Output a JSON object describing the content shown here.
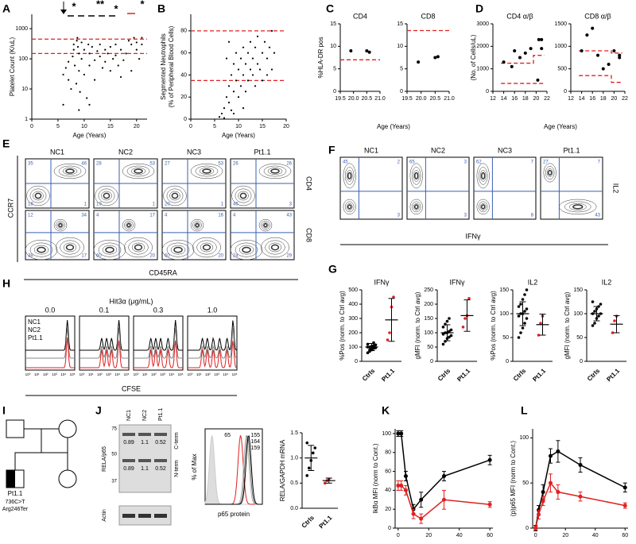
{
  "panel_labels": [
    "A",
    "B",
    "C",
    "D",
    "E",
    "F",
    "G",
    "H",
    "I",
    "J",
    "K",
    "L"
  ],
  "shared_labels": {
    "c_x": "Age (Years)",
    "d_x": "Age (Years)"
  },
  "chart_data": [
    {
      "type": "scatter",
      "y_label": "Platelet Count (K/uL)",
      "x_label": "Age (Years)",
      "log": true,
      "color": "#000",
      "xlim": [
        0,
        22
      ],
      "xticks": [
        0,
        5,
        10,
        15,
        20
      ],
      "ylim": [
        1,
        3000
      ],
      "yticks": [
        1,
        10,
        100,
        1000
      ],
      "x": [
        6,
        6.5,
        7,
        7,
        7.5,
        7.8,
        8,
        8,
        8.2,
        8.5,
        8.6,
        8.7,
        8.8,
        9,
        9,
        9.2,
        9.5,
        9.5,
        10,
        10,
        10.5,
        10.8,
        11,
        11,
        11.5,
        12,
        12,
        12.5,
        13,
        13,
        13.5,
        14,
        14,
        14.5,
        15,
        15,
        15.5,
        16,
        16,
        16.5,
        17,
        17,
        17.5,
        18,
        18.5,
        19,
        19,
        19.5,
        20,
        20,
        20.5,
        21,
        21,
        6,
        9,
        11
      ],
      "values": [
        30,
        50,
        20,
        80,
        10,
        120,
        200,
        300,
        60,
        15,
        400,
        500,
        250,
        150,
        40,
        8,
        350,
        100,
        200,
        30,
        5,
        300,
        150,
        60,
        250,
        90,
        20,
        180,
        300,
        120,
        50,
        200,
        80,
        150,
        250,
        40,
        100,
        130,
        300,
        60,
        200,
        25,
        90,
        150,
        400,
        300,
        40,
        500,
        350,
        200,
        100,
        300,
        500,
        3,
        2,
        3
      ],
      "reference_lines": [
        {
          "color": "#e02020",
          "x": [
            0,
            22
          ],
          "values": [
            150,
            150
          ]
        },
        {
          "color": "#e02020",
          "x": [
            0,
            22
          ],
          "values": [
            450,
            450
          ]
        }
      ],
      "annotations": [
        {
          "text": "*",
          "color": "#000"
        },
        {
          "text": "**",
          "color": "#22aa44"
        },
        {
          "text": "*",
          "color": "#e02020"
        },
        {
          "text": "*",
          "color": "#22aa44"
        }
      ]
    },
    {
      "type": "scatter",
      "y_label": [
        "Segmented Neutrophils",
        "(% of Peripheral Blood Cells)"
      ],
      "x_label": "Age (Years)",
      "color": "#000",
      "xlim": [
        0,
        20
      ],
      "xticks": [
        0,
        5,
        10,
        15,
        20
      ],
      "ylim": [
        0,
        95
      ],
      "yticks": [
        0,
        20,
        40,
        60,
        80
      ],
      "x": [
        6,
        6.5,
        7,
        7,
        7.5,
        8,
        8,
        8.5,
        8.5,
        9,
        9,
        9.5,
        9.5,
        10,
        10,
        10.5,
        10.5,
        11,
        11,
        11.5,
        11.5,
        12,
        12,
        12.5,
        12.5,
        13,
        13,
        13.5,
        13.5,
        14,
        14,
        14.5,
        15,
        15,
        15.5,
        16,
        16,
        16.5,
        17,
        17,
        17.5,
        8,
        7.5,
        11,
        9
      ],
      "values": [
        2,
        5,
        10,
        1,
        20,
        15,
        30,
        40,
        8,
        25,
        50,
        35,
        60,
        45,
        20,
        55,
        30,
        40,
        65,
        50,
        25,
        60,
        35,
        45,
        70,
        40,
        55,
        30,
        65,
        50,
        75,
        45,
        35,
        60,
        70,
        40,
        55,
        65,
        45,
        80,
        60,
        70,
        55,
        10,
        5
      ],
      "reference_lines": [
        {
          "color": "#e02020",
          "x": [
            0,
            20
          ],
          "values": [
            80,
            80
          ]
        },
        {
          "color": "#e02020",
          "x": [
            0,
            20
          ],
          "values": [
            35,
            35
          ]
        }
      ]
    },
    {
      "type": "scatter",
      "title": "CD4",
      "y_label": "%HLA-DR pos",
      "color": "#000",
      "xlim": [
        19.5,
        21
      ],
      "xticks": [
        19.5,
        {
          "value": 20,
          "label": "20.0"
        },
        20.5,
        {
          "value": 21,
          "label": "21.0"
        }
      ],
      "ylim": [
        0,
        15
      ],
      "yticks": [
        0,
        5,
        10,
        15
      ],
      "x": [
        19.9,
        20.5,
        20.6
      ],
      "values": [
        9,
        9,
        8.7
      ],
      "reference_lines": [
        {
          "color": "#e02020",
          "x": [
            19.5,
            21
          ],
          "values": [
            7,
            7
          ]
        }
      ]
    },
    {
      "type": "scatter",
      "title": "CD8",
      "color": "#000",
      "xlim": [
        19.5,
        21
      ],
      "xticks": [
        19.5,
        {
          "value": 20,
          "label": "20.0"
        },
        20.5,
        {
          "value": 21,
          "label": "21.0"
        }
      ],
      "ylim": [
        0,
        15
      ],
      "yticks": [
        0,
        5,
        10,
        15
      ],
      "x": [
        19.9,
        20.5,
        20.6
      ],
      "values": [
        6.5,
        7.5,
        7.7
      ],
      "reference_lines": [
        {
          "color": "#e02020",
          "x": [
            19.5,
            21
          ],
          "values": [
            13.5,
            13.5
          ]
        }
      ]
    },
    {
      "type": "scatter",
      "title": "CD4 α/β",
      "y_label": "(No. of Cells/uL)",
      "color": "#000",
      "xlim": [
        12,
        22
      ],
      "xticks": [
        12,
        14,
        16,
        18,
        20,
        22
      ],
      "ylim": [
        0,
        3000
      ],
      "yticks": [
        0,
        1000,
        2000,
        3000
      ],
      "x": [
        14,
        15.5,
        16,
        17,
        18,
        19,
        20.3,
        20.5,
        21,
        21
      ],
      "values": [
        1300,
        1100,
        1800,
        1500,
        1700,
        1900,
        500,
        2300,
        1900,
        2300
      ],
      "reference_lines": [
        {
          "color": "#e02020",
          "x": [
            13.5,
            19.5,
            19.5,
            21.5
          ],
          "values": [
            1250,
            1250,
            1600,
            1600
          ]
        },
        {
          "color": "#e02020",
          "x": [
            13.5,
            21.5
          ],
          "values": [
            350,
            350
          ]
        }
      ]
    },
    {
      "type": "scatter",
      "title": "CD8 α/β",
      "color": "#000",
      "xlim": [
        12,
        22
      ],
      "xticks": [
        12,
        14,
        16,
        18,
        20,
        22
      ],
      "ylim": [
        0,
        1500
      ],
      "yticks": [
        0,
        500,
        1000,
        1500
      ],
      "x": [
        14,
        15,
        16,
        17,
        18,
        19,
        20,
        21,
        21
      ],
      "values": [
        900,
        1250,
        1400,
        800,
        500,
        600,
        900,
        800,
        750
      ],
      "reference_lines": [
        {
          "color": "#e02020",
          "x": [
            13.5,
            19.5,
            19.5,
            21.5
          ],
          "values": [
            900,
            900,
            850,
            850
          ]
        },
        {
          "color": "#e02020",
          "x": [
            13.5,
            19.5,
            19.5,
            21.5
          ],
          "values": [
            350,
            350,
            200,
            200
          ]
        }
      ]
    },
    {
      "type": "dot",
      "title": "IFNγ",
      "y_label": "%Pos (norm. to Ctrl avg)",
      "categories": [
        "Ctrls",
        "Pt1.1"
      ],
      "colors": [
        "#000",
        "#e02020"
      ],
      "ylim": [
        0,
        500
      ],
      "yticks": [
        0,
        100,
        200,
        300,
        400,
        500
      ],
      "values": [
        [
          60,
          70,
          80,
          90,
          95,
          100,
          100,
          105,
          110,
          115,
          120,
          80,
          90,
          130
        ],
        [
          150,
          200,
          380,
          450
        ]
      ],
      "mean": [
        100,
        290
      ],
      "sd": [
        25,
        150
      ]
    },
    {
      "type": "dot",
      "title": "IFNγ",
      "y_label": "gMFI (norm. to Ctrl avg)",
      "categories": [
        "Ctrls",
        "Pt1.1"
      ],
      "colors": [
        "#000",
        "#e02020"
      ],
      "ylim": [
        0,
        250
      ],
      "yticks": [
        0,
        50,
        100,
        150,
        200,
        250
      ],
      "values": [
        [
          60,
          70,
          80,
          85,
          90,
          95,
          100,
          100,
          105,
          110,
          120,
          130,
          140,
          150
        ],
        [
          120,
          150,
          160,
          220
        ]
      ],
      "mean": [
        100,
        160
      ],
      "sd": [
        28,
        55
      ]
    },
    {
      "type": "dot",
      "title": "IL2",
      "y_label": "%Pos (norm. to Ctrl avg)",
      "categories": [
        "Ctrls",
        "Pt1.1"
      ],
      "colors": [
        "#000",
        "#e02020"
      ],
      "ylim": [
        0,
        150
      ],
      "yticks": [
        0,
        50,
        100,
        150
      ],
      "values": [
        [
          50,
          60,
          70,
          80,
          90,
          95,
          100,
          100,
          105,
          110,
          115,
          120,
          130,
          140,
          150
        ],
        [
          55,
          80,
          95
        ]
      ],
      "mean": [
        100,
        77
      ],
      "sd": [
        25,
        22
      ]
    },
    {
      "type": "dot",
      "title": "IL2",
      "y_label": "gMFI (norm. to Ctrl avg)",
      "categories": [
        "Ctrls",
        "Pt1.1"
      ],
      "colors": [
        "#000",
        "#e02020"
      ],
      "ylim": [
        0,
        150
      ],
      "yticks": [
        0,
        50,
        100,
        150
      ],
      "values": [
        [
          75,
          80,
          90,
          95,
          100,
          100,
          105,
          110,
          115,
          120,
          125
        ],
        [
          60,
          85,
          95
        ]
      ],
      "mean": [
        100,
        78
      ],
      "sd": [
        15,
        18
      ]
    },
    {
      "type": "dot",
      "y_label": "RELA/GAPDH mRNA",
      "categories": [
        "Ctrls",
        "Pt1.1"
      ],
      "colors": [
        "#000",
        "#e02020"
      ],
      "ylim": [
        0,
        1.5
      ],
      "yticks": [
        {
          "value": 0,
          "label": "0.0"
        },
        0.5,
        {
          "value": 1,
          "label": "1.0"
        },
        1.5
      ],
      "values": [
        [
          0.65,
          0.8,
          0.95,
          1.1,
          1.2,
          1.3
        ],
        [
          0.5,
          0.55,
          0.58
        ]
      ],
      "mean": [
        1,
        0.55
      ],
      "sd": [
        0.25,
        0.05
      ]
    },
    {
      "type": "line",
      "y_label": "IkBα MFI (norm to Cont.)",
      "xlim": [
        -2,
        62
      ],
      "xticks": [
        0,
        20,
        40,
        60
      ],
      "ylim": [
        0,
        105
      ],
      "yticks": [
        0,
        20,
        40,
        60,
        80,
        100
      ],
      "x": [
        0,
        2,
        5,
        10,
        15,
        30,
        60
      ],
      "series": [
        {
          "color": "#000",
          "values": [
            100,
            100,
            55,
            20,
            30,
            55,
            72
          ],
          "errors": [
            3,
            3,
            5,
            5,
            8,
            5,
            5
          ]
        },
        {
          "color": "#e02020",
          "values": [
            45,
            45,
            40,
            15,
            10,
            30,
            25
          ],
          "errors": [
            5,
            5,
            5,
            5,
            5,
            10,
            3
          ]
        }
      ]
    },
    {
      "type": "line",
      "y_label": "(p)p65 MFI (norm to Cont.)",
      "xlim": [
        -2,
        62
      ],
      "xticks": [
        0,
        20,
        40,
        60
      ],
      "ylim": [
        0,
        110
      ],
      "yticks": [
        0,
        50,
        100
      ],
      "x": [
        0,
        2,
        5,
        10,
        15,
        30,
        60
      ],
      "series": [
        {
          "color": "#000",
          "values": [
            0,
            20,
            40,
            80,
            85,
            70,
            45
          ],
          "errors": [
            3,
            5,
            8,
            8,
            12,
            8,
            5
          ]
        },
        {
          "color": "#e02020",
          "values": [
            0,
            15,
            30,
            50,
            40,
            35,
            25
          ],
          "errors": [
            2,
            5,
            5,
            10,
            8,
            5,
            3
          ]
        }
      ]
    }
  ],
  "flow_E": {
    "columns": [
      "NC1",
      "NC2",
      "NC3",
      "Pt1.1"
    ],
    "rows": [
      "CD4",
      "CD8"
    ],
    "y_axis": "CCR7",
    "x_axis": "CD45RA",
    "quadrants": [
      [
        [
          35,
          46,
          18,
          1
        ],
        [
          28,
          53,
          19,
          1
        ],
        [
          27,
          53,
          20,
          1
        ],
        [
          26,
          26,
          45,
          3
        ]
      ],
      [
        [
          12,
          34,
          38,
          17
        ],
        [
          4,
          17,
          60,
          20
        ],
        [
          4,
          16,
          60,
          20
        ],
        [
          4,
          43,
          24,
          29
        ]
      ]
    ]
  },
  "flow_F": {
    "columns": [
      "NC1",
      "NC2",
      "NC3",
      "Pt1.1"
    ],
    "y_axis": "IL2",
    "x_axis": "IFNγ",
    "quadrants": [
      [
        45,
        2,
        3
      ],
      [
        65,
        3,
        3
      ],
      [
        62,
        7,
        8
      ],
      [
        27,
        7,
        43
      ]
    ]
  },
  "flow_ticks": [
    "10⁰",
    "10¹",
    "10²",
    "10³",
    "10⁴",
    "10⁵"
  ],
  "hist_H": {
    "title": "Hit3α (μg/mL)",
    "doses": [
      "0.0",
      "0.1",
      "0.3",
      "1.0"
    ],
    "x_axis": "CFSE",
    "legend": [
      {
        "name": "NC1",
        "color": "#000"
      },
      {
        "name": "NC2",
        "color": "#888"
      },
      {
        "name": "Pt1.1",
        "color": "#e02020"
      }
    ]
  },
  "pedigree": {
    "proband": "Pt1.1",
    "variant": "736C>T",
    "protein": "Arg246Ter"
  },
  "blot": {
    "lanes": [
      "NC1",
      "NC2",
      "Pt1.1"
    ],
    "antibody": "RELA/p65",
    "loading": "Actin",
    "c_term": "C-term",
    "n_term": "N-term",
    "markers": [
      75,
      50,
      37
    ],
    "c_values": [
      0.89,
      1.1,
      0.52
    ],
    "n_values": [
      0.89,
      1.1,
      0.52
    ]
  },
  "p65_hist": {
    "y_axis": "% of Max",
    "x_axis": "p65 protein",
    "labels": [
      65,
      155,
      164,
      159
    ],
    "colors": [
      "#e02020",
      "#000",
      "#777",
      "#bbb"
    ]
  }
}
